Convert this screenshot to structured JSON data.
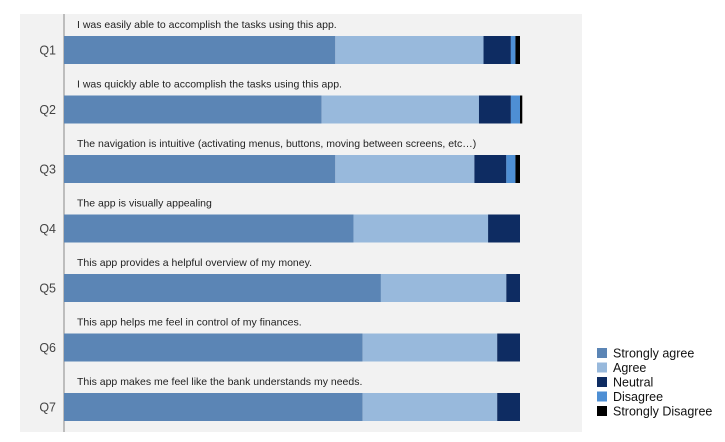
{
  "chart_data": {
    "type": "bar",
    "orientation": "horizontal",
    "stacked": "percent",
    "categories": [
      "Q1",
      "Q2",
      "Q3",
      "Q4",
      "Q5",
      "Q6",
      "Q7"
    ],
    "questions": [
      "I was easily able to accomplish the tasks using this app.",
      "I was quickly able to accomplish the tasks using this app.",
      "The navigation is intuitive (activating menus, buttons, moving between screens, etc…)",
      "The app is visually appealing",
      "This app provides a helpful overview of my money.",
      "This app helps me feel in control of my finances.",
      "This app makes me feel like the bank understands my needs."
    ],
    "series": [
      {
        "name": "Strongly agree",
        "color": "#5b85b5",
        "values": [
          59.5,
          56.5,
          59.5,
          63.5,
          69.5,
          65.5,
          65.5
        ]
      },
      {
        "name": "Agree",
        "color": "#98b9dc",
        "values": [
          32.5,
          34.5,
          30.5,
          29.5,
          27.5,
          29.5,
          29.5
        ]
      },
      {
        "name": "Neutral",
        "color": "#0e2c62",
        "values": [
          6.0,
          7.0,
          7.0,
          7.0,
          3.0,
          5.0,
          5.0
        ]
      },
      {
        "name": "Disagree",
        "color": "#4e8fd4",
        "values": [
          1.0,
          2.0,
          2.0,
          0.0,
          0.0,
          0.0,
          0.0
        ]
      },
      {
        "name": "Strongly Disagree",
        "color": "#000000",
        "values": [
          1.0,
          0.5,
          1.0,
          0.0,
          0.0,
          0.0,
          0.0
        ]
      }
    ],
    "xlim": [
      0,
      100
    ],
    "grid": false,
    "legend_position": "bottom-right",
    "background_color": "#f2f2f2"
  }
}
